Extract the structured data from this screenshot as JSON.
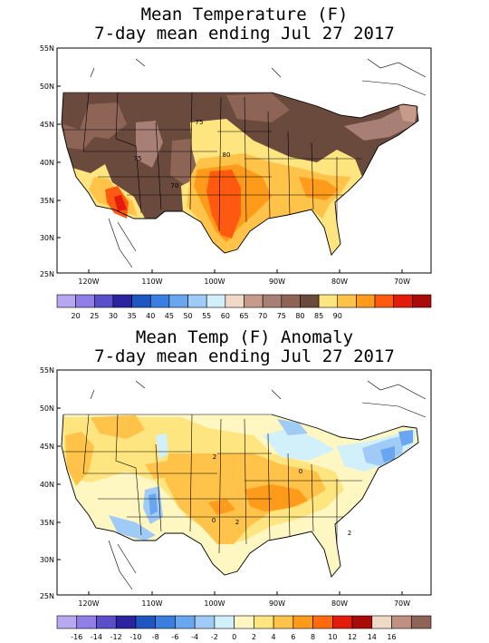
{
  "maps": [
    {
      "title_line1": "Mean Temperature (F)",
      "title_line2": "7-day mean ending Jul 27 2017",
      "lat_labels": [
        "55N",
        "50N",
        "45N",
        "40N",
        "35N",
        "30N",
        "25N"
      ],
      "lon_labels": [
        "120W",
        "110W",
        "100W",
        "90W",
        "80W",
        "70W"
      ],
      "contour_labels": [
        "75",
        "75",
        "80",
        "70"
      ],
      "legend": {
        "colors": [
          "#b7a6f0",
          "#8f7fe6",
          "#5b4ec9",
          "#2b23a0",
          "#1f56c2",
          "#3a7fe0",
          "#6aa5f0",
          "#9fcbf6",
          "#d2f0fa",
          "#f1d9c8",
          "#c79b8c",
          "#a87f74",
          "#8d6456",
          "#6a4a3d",
          "#ffe57f",
          "#ffc34a",
          "#ff9b1a",
          "#ff5a10",
          "#e21b0c",
          "#a90a0a"
        ],
        "labels": [
          "20",
          "25",
          "30",
          "35",
          "40",
          "45",
          "50",
          "55",
          "60",
          "65",
          "70",
          "75",
          "80",
          "85",
          "90"
        ]
      }
    },
    {
      "title_line1": "Mean Temp (F) Anomaly",
      "title_line2": "7-day mean ending Jul 27 2017",
      "lat_labels": [
        "55N",
        "50N",
        "45N",
        "40N",
        "35N",
        "30N",
        "25N"
      ],
      "lon_labels": [
        "120W",
        "110W",
        "100W",
        "90W",
        "80W",
        "70W"
      ],
      "contour_labels": [
        "2",
        "2",
        "0",
        "0",
        "2"
      ],
      "legend": {
        "colors": [
          "#b9a8f0",
          "#8f7fe6",
          "#5b4ec9",
          "#2b23a0",
          "#1f56c2",
          "#3a7fe0",
          "#6aa5f0",
          "#9fcbf6",
          "#d2f0fa",
          "#fff7c2",
          "#ffe57f",
          "#ffc34a",
          "#ff9b1a",
          "#ff6a10",
          "#e21b0c",
          "#a90a0a",
          "#f1d9c8",
          "#c09080",
          "#8d6456"
        ],
        "labels": [
          "-16",
          "-14",
          "-12",
          "-10",
          "-8",
          "-6",
          "-4",
          "-2",
          "0",
          "2",
          "4",
          "6",
          "8",
          "10",
          "12",
          "14",
          "16"
        ]
      }
    }
  ]
}
